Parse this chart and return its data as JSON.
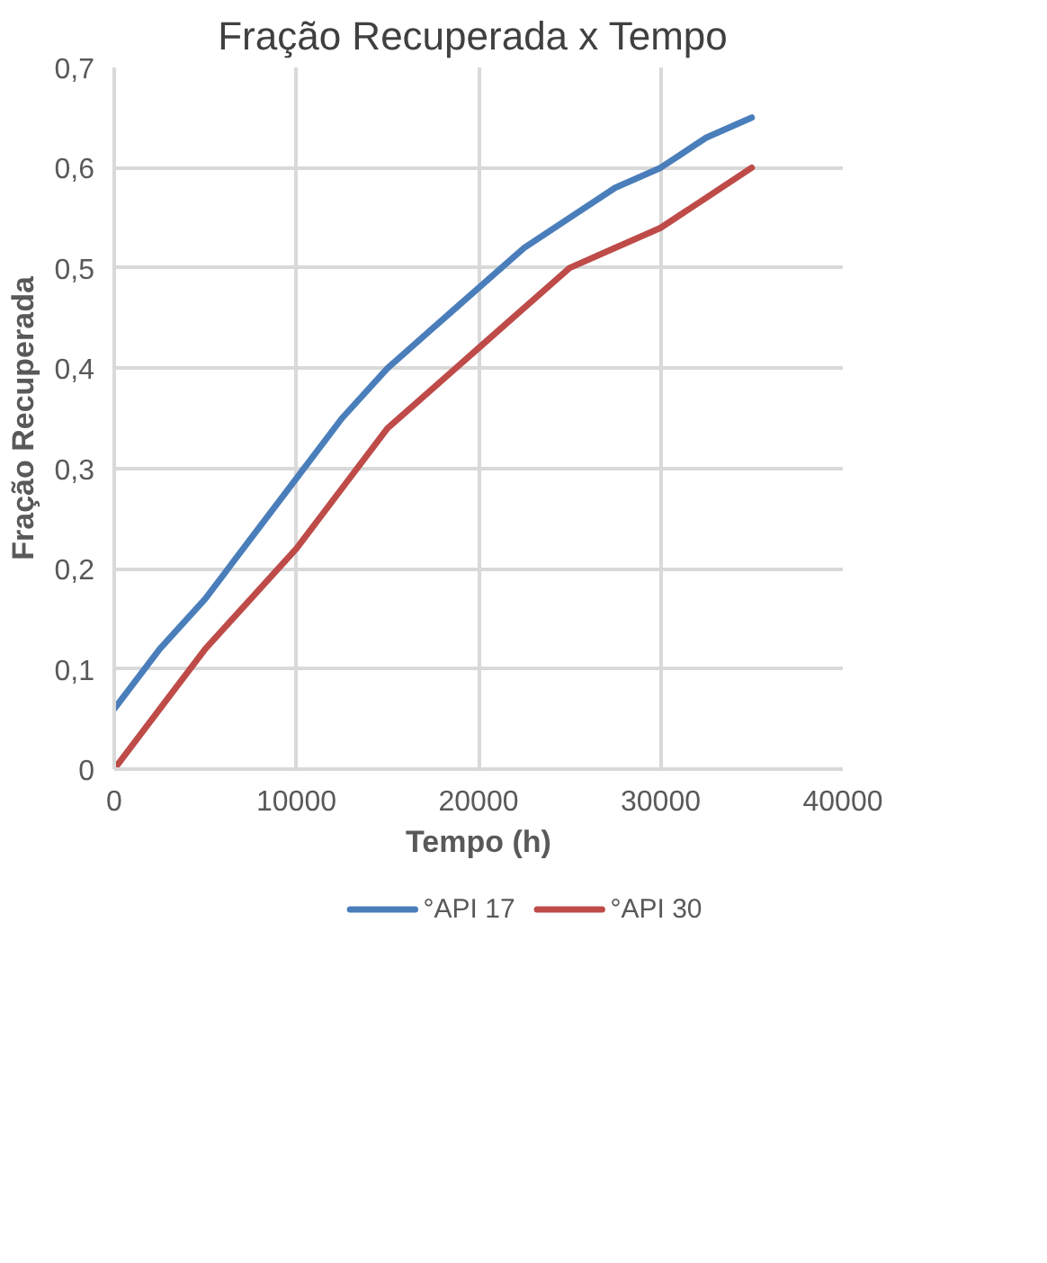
{
  "chart_data": {
    "type": "line",
    "title": "Fração  Recuperada x Tempo",
    "xlabel": "Tempo (h)",
    "ylabel": "Fração Recuperada",
    "x": [
      0,
      2500,
      5000,
      7500,
      10000,
      12500,
      15000,
      17500,
      20000,
      22500,
      25000,
      27500,
      30000,
      32500,
      35000
    ],
    "series": [
      {
        "name": "°API 17",
        "color": "#4a7ebb",
        "values": [
          0.06,
          0.12,
          0.17,
          0.23,
          0.29,
          0.35,
          0.4,
          0.44,
          0.48,
          0.52,
          0.55,
          0.58,
          0.6,
          0.63,
          0.65
        ]
      },
      {
        "name": "°API 30",
        "color": "#be4b48",
        "values": [
          0,
          0.06,
          0.12,
          0.17,
          0.22,
          0.28,
          0.34,
          0.38,
          0.42,
          0.46,
          0.5,
          0.52,
          0.54,
          0.57,
          0.6
        ]
      }
    ],
    "xlim": [
      0,
      40000
    ],
    "ylim": [
      0,
      0.7
    ],
    "xticks": [
      0,
      10000,
      20000,
      30000,
      40000
    ],
    "yticks": [
      0,
      {
        "value": 0.1,
        "label": "0,1"
      },
      {
        "value": 0.2,
        "label": "0,2"
      },
      {
        "value": 0.3,
        "label": "0,3"
      },
      {
        "value": 0.4,
        "label": "0,4"
      },
      {
        "value": 0.5,
        "label": "0,5"
      },
      {
        "value": 0.6,
        "label": "0,6"
      },
      {
        "value": 0.7,
        "label": "0,7"
      }
    ],
    "grid": true,
    "legend": "bottom",
    "marker": "none",
    "line_style": "solid"
  }
}
